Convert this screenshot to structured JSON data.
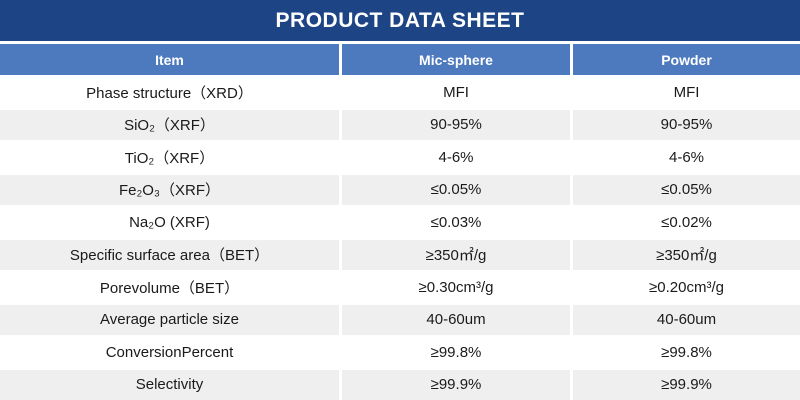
{
  "title": "PRODUCT DATA SHEET",
  "colors": {
    "banner_navy": "#1d4586",
    "header_blue": "#4d7abf",
    "stripe_gray": "#efefef",
    "text_dark": "#1a1a1a",
    "text_white": "#ffffff"
  },
  "table": {
    "headers": [
      "Item",
      "Mic-sphere",
      "Powder"
    ],
    "rows": [
      {
        "item": "Phase structure（XRD）",
        "mic_sphere": "MFI",
        "powder": "MFI"
      },
      {
        "item": "SiO₂（XRF）",
        "mic_sphere": "90-95%",
        "powder": "90-95%"
      },
      {
        "item": "TiO₂（XRF）",
        "mic_sphere": "4-6%",
        "powder": "4-6%"
      },
      {
        "item": "Fe₂O₃（XRF）",
        "mic_sphere": "≤0.05%",
        "powder": "≤0.05%"
      },
      {
        "item": "Na₂O (XRF)",
        "mic_sphere": "≤0.03%",
        "powder": "≤0.02%"
      },
      {
        "item": "Specific surface area（BET）",
        "mic_sphere": "≥350㎡/g",
        "powder": "≥350㎡/g"
      },
      {
        "item": "Porevolume（BET）",
        "mic_sphere": "≥0.30cm³/g",
        "powder": "≥0.20cm³/g"
      },
      {
        "item": "Average particle size",
        "mic_sphere": "40-60um",
        "powder": "40-60um"
      },
      {
        "item": "ConversionPercent",
        "mic_sphere": "≥99.8%",
        "powder": "≥99.8%"
      },
      {
        "item": "Selectivity",
        "mic_sphere": "≥99.9%",
        "powder": "≥99.9%"
      }
    ]
  }
}
